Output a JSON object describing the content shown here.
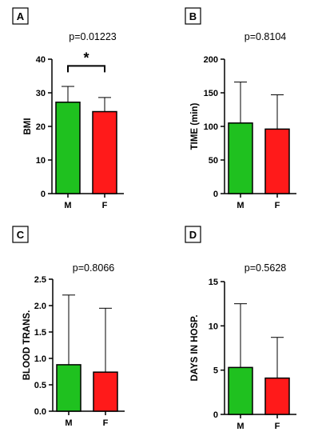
{
  "chart_data": [
    {
      "type": "bar",
      "panel_label": "A",
      "title": "p=0.01223",
      "xlabel": "",
      "ylabel": "BMI",
      "categories": [
        "M",
        "F"
      ],
      "values": [
        27.2,
        24.4
      ],
      "error_upper": [
        31.9,
        28.6
      ],
      "colors": [
        "#1fc11f",
        "#ff1a1a"
      ],
      "ylim": [
        0,
        40
      ],
      "yticks": [
        "0",
        "10",
        "20",
        "30",
        "40"
      ],
      "significance": {
        "between": [
          "M",
          "F"
        ],
        "marker": "*",
        "y": 38
      },
      "grid": false
    },
    {
      "type": "bar",
      "panel_label": "B",
      "title": "p=0.8104",
      "xlabel": "",
      "ylabel": "TIME (min)",
      "categories": [
        "M",
        "F"
      ],
      "values": [
        105,
        96
      ],
      "error_upper": [
        166,
        147
      ],
      "colors": [
        "#1fc11f",
        "#ff1a1a"
      ],
      "ylim": [
        0,
        200
      ],
      "yticks": [
        "0",
        "50",
        "100",
        "150",
        "200"
      ],
      "grid": false
    },
    {
      "type": "bar",
      "panel_label": "C",
      "title": "p=0.8066",
      "xlabel": "",
      "ylabel": "BLOOD TRANS.",
      "categories": [
        "M",
        "F"
      ],
      "values": [
        0.88,
        0.74
      ],
      "error_upper": [
        2.2,
        1.95
      ],
      "colors": [
        "#1fc11f",
        "#ff1a1a"
      ],
      "ylim": [
        0,
        2.5
      ],
      "yticks": [
        "0.0",
        "0.5",
        "1.0",
        "1.5",
        "2.0",
        "2.5"
      ],
      "grid": false
    },
    {
      "type": "bar",
      "panel_label": "D",
      "title": "p=0.5628",
      "xlabel": "",
      "ylabel": "DAYS IN HOSP.",
      "categories": [
        "M",
        "F"
      ],
      "values": [
        5.3,
        4.1
      ],
      "error_upper": [
        12.5,
        8.7
      ],
      "colors": [
        "#1fc11f",
        "#ff1a1a"
      ],
      "ylim": [
        0,
        15
      ],
      "yticks": [
        "0",
        "5",
        "10",
        "15"
      ],
      "grid": false
    }
  ]
}
